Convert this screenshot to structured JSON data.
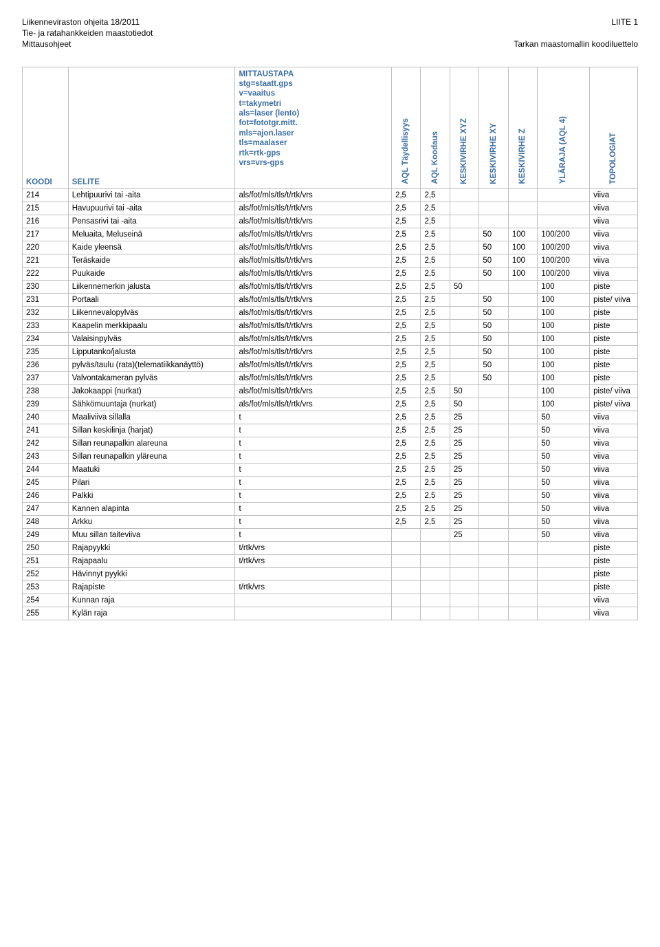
{
  "header": {
    "left_line1": "Liikenneviraston ohjeita 18/2011",
    "left_line2": "Tie- ja ratahankkeiden maastotiedot",
    "left_line3": "Mittausohjeet",
    "right_line1": "LIITE 1",
    "right_line2": "Tarkan maastomallin koodiluettelo"
  },
  "columns": {
    "koodi": "KOODI",
    "selite": "SELITE",
    "mittaustapa_lines": [
      "MITTAUSTAPA",
      "stg=staatt.gps",
      "v=vaaitus",
      "t=takymetri",
      "als=laser (lento)",
      "fot=fototgr.mitt.",
      "mls=ajon.laser",
      "tls=maalaser",
      "rtk=rtk-gps",
      "vrs=vrs-gps"
    ],
    "aql_t": "AQL Täydellisyys",
    "aql_k": "AQL Koodaus",
    "kxyz": "KESKIVIRHE XYZ",
    "kxy": "KESKIVIRHE XY",
    "kz": "KESKIVIRHE Z",
    "ylaraja": "YLÄRAJA (AQL 4)",
    "topo": "TOPOLOGIAT"
  },
  "rows": [
    {
      "koodi": "214",
      "selite": "Lehtipuurivi tai -aita",
      "mittaus": "als/fot/mls/tls/t/rtk/vrs",
      "aqlt": "2,5",
      "aqlk": "2,5",
      "kxyz": "",
      "kxy": "",
      "kz": "",
      "ylaraja": "",
      "topo": "viiva"
    },
    {
      "koodi": "215",
      "selite": "Havupuurivi tai -aita",
      "mittaus": "als/fot/mls/tls/t/rtk/vrs",
      "aqlt": "2,5",
      "aqlk": "2,5",
      "kxyz": "",
      "kxy": "",
      "kz": "",
      "ylaraja": "",
      "topo": "viiva"
    },
    {
      "koodi": "216",
      "selite": "Pensasrivi tai -aita",
      "mittaus": "als/fot/mls/tls/t/rtk/vrs",
      "aqlt": "2,5",
      "aqlk": "2,5",
      "kxyz": "",
      "kxy": "",
      "kz": "",
      "ylaraja": "",
      "topo": "viiva"
    },
    {
      "koodi": "217",
      "selite": "Meluaita, Meluseinä",
      "mittaus": "als/fot/mls/tls/t/rtk/vrs",
      "aqlt": "2,5",
      "aqlk": "2,5",
      "kxyz": "",
      "kxy": "50",
      "kz": "100",
      "ylaraja": "100/200",
      "topo": "viiva"
    },
    {
      "koodi": "220",
      "selite": "Kaide yleensä",
      "mittaus": "als/fot/mls/tls/t/rtk/vrs",
      "aqlt": "2,5",
      "aqlk": "2,5",
      "kxyz": "",
      "kxy": "50",
      "kz": "100",
      "ylaraja": "100/200",
      "topo": "viiva"
    },
    {
      "koodi": "221",
      "selite": "Teräskaide",
      "mittaus": "als/fot/mls/tls/t/rtk/vrs",
      "aqlt": "2,5",
      "aqlk": "2,5",
      "kxyz": "",
      "kxy": "50",
      "kz": "100",
      "ylaraja": "100/200",
      "topo": "viiva"
    },
    {
      "koodi": "222",
      "selite": "Puukaide",
      "mittaus": "als/fot/mls/tls/t/rtk/vrs",
      "aqlt": "2,5",
      "aqlk": "2,5",
      "kxyz": "",
      "kxy": "50",
      "kz": "100",
      "ylaraja": "100/200",
      "topo": "viiva"
    },
    {
      "koodi": "230",
      "selite": "Liikennemerkin jalusta",
      "mittaus": "als/fot/mls/tls/t/rtk/vrs",
      "aqlt": "2,5",
      "aqlk": "2,5",
      "kxyz": "50",
      "kxy": "",
      "kz": "",
      "ylaraja": "100",
      "topo": "piste"
    },
    {
      "koodi": "231",
      "selite": "Portaali",
      "mittaus": "als/fot/mls/tls/t/rtk/vrs",
      "aqlt": "2,5",
      "aqlk": "2,5",
      "kxyz": "",
      "kxy": "50",
      "kz": "",
      "ylaraja": "100",
      "topo": "piste/ viiva"
    },
    {
      "koodi": "232",
      "selite": "Liikennevalopylväs",
      "mittaus": "als/fot/mls/tls/t/rtk/vrs",
      "aqlt": "2,5",
      "aqlk": "2,5",
      "kxyz": "",
      "kxy": "50",
      "kz": "",
      "ylaraja": "100",
      "topo": "piste"
    },
    {
      "koodi": "233",
      "selite": "Kaapelin merkkipaalu",
      "mittaus": "als/fot/mls/tls/t/rtk/vrs",
      "aqlt": "2,5",
      "aqlk": "2,5",
      "kxyz": "",
      "kxy": "50",
      "kz": "",
      "ylaraja": "100",
      "topo": "piste"
    },
    {
      "koodi": "234",
      "selite": "Valaisinpylväs",
      "mittaus": "als/fot/mls/tls/t/rtk/vrs",
      "aqlt": "2,5",
      "aqlk": "2,5",
      "kxyz": "",
      "kxy": "50",
      "kz": "",
      "ylaraja": "100",
      "topo": "piste"
    },
    {
      "koodi": "235",
      "selite": "Lipputanko/jalusta",
      "mittaus": "als/fot/mls/tls/t/rtk/vrs",
      "aqlt": "2,5",
      "aqlk": "2,5",
      "kxyz": "",
      "kxy": "50",
      "kz": "",
      "ylaraja": "100",
      "topo": "piste"
    },
    {
      "koodi": "236",
      "selite": "pylväs/taulu (rata)(telematiikkanäyttö)",
      "mittaus": "als/fot/mls/tls/t/rtk/vrs",
      "aqlt": "2,5",
      "aqlk": "2,5",
      "kxyz": "",
      "kxy": "50",
      "kz": "",
      "ylaraja": "100",
      "topo": "piste"
    },
    {
      "koodi": "237",
      "selite": "Valvontakameran pylväs",
      "mittaus": "als/fot/mls/tls/t/rtk/vrs",
      "aqlt": "2,5",
      "aqlk": "2,5",
      "kxyz": "",
      "kxy": "50",
      "kz": "",
      "ylaraja": "100",
      "topo": "piste"
    },
    {
      "koodi": "238",
      "selite": "Jakokaappi (nurkat)",
      "mittaus": "als/fot/mls/tls/t/rtk/vrs",
      "aqlt": "2,5",
      "aqlk": "2,5",
      "kxyz": "50",
      "kxy": "",
      "kz": "",
      "ylaraja": "100",
      "topo": "piste/ viiva"
    },
    {
      "koodi": "239",
      "selite": "Sähkömuuntaja (nurkat)",
      "mittaus": "als/fot/mls/tls/t/rtk/vrs",
      "aqlt": "2,5",
      "aqlk": "2,5",
      "kxyz": "50",
      "kxy": "",
      "kz": "",
      "ylaraja": "100",
      "topo": "piste/ viiva"
    },
    {
      "koodi": "240",
      "selite": "Maaliviiva sillalla",
      "mittaus": "t",
      "aqlt": "2,5",
      "aqlk": "2,5",
      "kxyz": "25",
      "kxy": "",
      "kz": "",
      "ylaraja": "50",
      "topo": "viiva"
    },
    {
      "koodi": "241",
      "selite": "Sillan keskilinja (harjat)",
      "mittaus": "t",
      "aqlt": "2,5",
      "aqlk": "2,5",
      "kxyz": "25",
      "kxy": "",
      "kz": "",
      "ylaraja": "50",
      "topo": "viiva"
    },
    {
      "koodi": "242",
      "selite": "Sillan reunapalkin alareuna",
      "mittaus": "t",
      "aqlt": "2,5",
      "aqlk": "2,5",
      "kxyz": "25",
      "kxy": "",
      "kz": "",
      "ylaraja": "50",
      "topo": "viiva"
    },
    {
      "koodi": "243",
      "selite": "Sillan reunapalkin yläreuna",
      "mittaus": "t",
      "aqlt": "2,5",
      "aqlk": "2,5",
      "kxyz": "25",
      "kxy": "",
      "kz": "",
      "ylaraja": "50",
      "topo": "viiva"
    },
    {
      "koodi": "244",
      "selite": "Maatuki",
      "mittaus": "t",
      "aqlt": "2,5",
      "aqlk": "2,5",
      "kxyz": "25",
      "kxy": "",
      "kz": "",
      "ylaraja": "50",
      "topo": "viiva"
    },
    {
      "koodi": "245",
      "selite": "Pilari",
      "mittaus": "t",
      "aqlt": "2,5",
      "aqlk": "2,5",
      "kxyz": "25",
      "kxy": "",
      "kz": "",
      "ylaraja": "50",
      "topo": "viiva"
    },
    {
      "koodi": "246",
      "selite": "Palkki",
      "mittaus": "t",
      "aqlt": "2,5",
      "aqlk": "2,5",
      "kxyz": "25",
      "kxy": "",
      "kz": "",
      "ylaraja": "50",
      "topo": "viiva"
    },
    {
      "koodi": "247",
      "selite": "Kannen alapinta",
      "mittaus": "t",
      "aqlt": "2,5",
      "aqlk": "2,5",
      "kxyz": "25",
      "kxy": "",
      "kz": "",
      "ylaraja": "50",
      "topo": "viiva"
    },
    {
      "koodi": "248",
      "selite": "Arkku",
      "mittaus": "t",
      "aqlt": "2,5",
      "aqlk": "2,5",
      "kxyz": "25",
      "kxy": "",
      "kz": "",
      "ylaraja": "50",
      "topo": "viiva"
    },
    {
      "koodi": "249",
      "selite": "Muu sillan taiteviiva",
      "mittaus": "t",
      "aqlt": "",
      "aqlk": "",
      "kxyz": "25",
      "kxy": "",
      "kz": "",
      "ylaraja": "50",
      "topo": "viiva"
    },
    {
      "koodi": "250",
      "selite": "Rajapyykki",
      "mittaus": "t/rtk/vrs",
      "aqlt": "",
      "aqlk": "",
      "kxyz": "",
      "kxy": "",
      "kz": "",
      "ylaraja": "",
      "topo": "piste"
    },
    {
      "koodi": "251",
      "selite": "Rajapaalu",
      "mittaus": "t/rtk/vrs",
      "aqlt": "",
      "aqlk": "",
      "kxyz": "",
      "kxy": "",
      "kz": "",
      "ylaraja": "",
      "topo": "piste"
    },
    {
      "koodi": "252",
      "selite": "Hävinnyt pyykki",
      "mittaus": "",
      "aqlt": "",
      "aqlk": "",
      "kxyz": "",
      "kxy": "",
      "kz": "",
      "ylaraja": "",
      "topo": "piste"
    },
    {
      "koodi": "253",
      "selite": "Rajapiste",
      "mittaus": "t/rtk/vrs",
      "aqlt": "",
      "aqlk": "",
      "kxyz": "",
      "kxy": "",
      "kz": "",
      "ylaraja": "",
      "topo": "piste"
    },
    {
      "koodi": "254",
      "selite": "Kunnan raja",
      "mittaus": "",
      "aqlt": "",
      "aqlk": "",
      "kxyz": "",
      "kxy": "",
      "kz": "",
      "ylaraja": "",
      "topo": "viiva"
    },
    {
      "koodi": "255",
      "selite": "Kylän raja",
      "mittaus": "",
      "aqlt": "",
      "aqlk": "",
      "kxyz": "",
      "kxy": "",
      "kz": "",
      "ylaraja": "",
      "topo": "viiva"
    }
  ]
}
